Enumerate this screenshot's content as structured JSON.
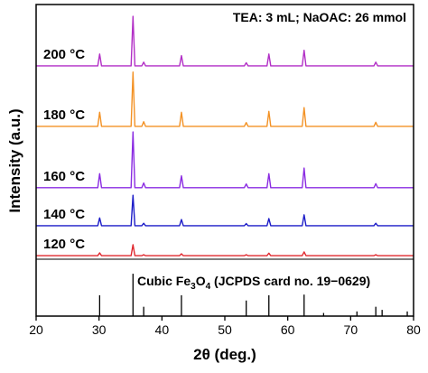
{
  "chart_data": {
    "type": "line",
    "annotation": "TEA: 3 mL; NaOAC: 26 mmol",
    "xlabel": "2θ (deg.)",
    "ylabel": "Intensity (a.u.)",
    "x": [
      20,
      29.8,
      30.1,
      30.4,
      35.1,
      35.4,
      35.7,
      36.8,
      37.1,
      37.4,
      42.8,
      43.1,
      43.4,
      53.1,
      53.4,
      53.7,
      56.7,
      57.0,
      57.3,
      62.3,
      62.6,
      62.9,
      73.7,
      74.0,
      74.3,
      80
    ],
    "series": [
      {
        "name": "120 °C",
        "color": "#e0282e",
        "values": [
          19.4,
          19.4,
          20.3,
          19.4,
          19.4,
          22.9,
          19.4,
          19.4,
          19.7,
          19.4,
          19.4,
          20.0,
          19.4,
          19.4,
          19.7,
          19.4,
          19.4,
          20.2,
          19.4,
          19.4,
          20.6,
          19.4,
          19.4,
          19.7,
          19.4,
          19.4
        ]
      },
      {
        "name": "140 °C",
        "color": "#1c1cc8",
        "values": [
          29.0,
          29.0,
          31.5,
          29.0,
          29.0,
          38.8,
          29.0,
          29.0,
          29.8,
          29.0,
          29.0,
          31.0,
          29.0,
          29.0,
          29.7,
          29.0,
          29.0,
          31.3,
          29.0,
          29.0,
          32.5,
          29.0,
          29.0,
          29.8,
          29.0,
          29.0
        ]
      },
      {
        "name": "160 °C",
        "color": "#8a2be2",
        "values": [
          41.2,
          41.2,
          45.7,
          41.2,
          41.2,
          59.1,
          41.2,
          41.2,
          42.7,
          41.2,
          41.2,
          45.0,
          41.2,
          41.2,
          42.4,
          41.2,
          41.2,
          45.7,
          41.2,
          41.2,
          47.5,
          41.2,
          41.2,
          42.5,
          41.2,
          41.2
        ]
      },
      {
        "name": "180 °C",
        "color": "#f39225",
        "values": [
          60.9,
          60.9,
          65.4,
          60.9,
          60.9,
          78.3,
          60.9,
          60.9,
          62.4,
          60.9,
          60.9,
          65.4,
          60.9,
          60.9,
          62.1,
          60.9,
          60.9,
          65.7,
          60.9,
          60.9,
          66.9,
          60.9,
          60.9,
          62.2,
          60.9,
          60.9
        ]
      },
      {
        "name": "200 °C",
        "color": "#b22fc6",
        "values": [
          80.3,
          80.3,
          84.1,
          80.3,
          80.3,
          96.2,
          80.3,
          80.3,
          81.5,
          80.3,
          80.3,
          83.6,
          80.3,
          80.3,
          81.3,
          80.3,
          80.3,
          84.1,
          80.3,
          80.3,
          85.3,
          80.3,
          80.3,
          81.5,
          80.3,
          80.3
        ]
      }
    ],
    "reference": {
      "label": [
        "Cubic Fe",
        "3",
        "O",
        "4",
        " (JCPDS card no. 19−0629)"
      ],
      "positions": [
        30.1,
        35.4,
        37.1,
        43.1,
        53.4,
        57.0,
        62.6,
        65.7,
        71.0,
        74.0,
        75.0,
        79.0
      ],
      "values": [
        6.7,
        13.6,
        3.0,
        6.7,
        5.0,
        6.7,
        6.9,
        1.0,
        1.5,
        3.0,
        2.0,
        1.5
      ]
    },
    "xlim": [
      20,
      80
    ],
    "xticks": [
      20,
      30,
      40,
      50,
      60,
      70,
      80
    ],
    "ylim": [
      0,
      100
    ]
  }
}
